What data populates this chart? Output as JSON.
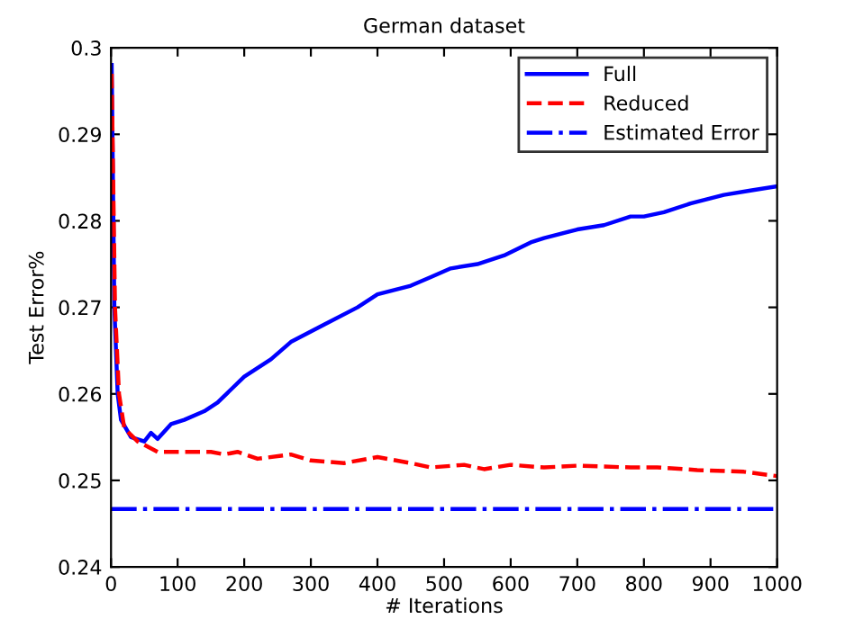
{
  "chart_data": {
    "type": "line",
    "title": "German dataset",
    "xlabel": "# Iterations",
    "ylabel": "Test Error%",
    "xlim": [
      0,
      1000
    ],
    "xticks": [
      0,
      100,
      200,
      300,
      400,
      500,
      600,
      700,
      800,
      900,
      1000
    ],
    "ylim": [
      0.24,
      0.3
    ],
    "yticks": [
      0.24,
      0.25,
      0.26,
      0.27,
      0.28,
      0.29,
      0.3
    ],
    "grid": false,
    "legend": "top right",
    "series": [
      {
        "name": "Full",
        "color": "#0000ff",
        "line_style": "solid",
        "x": [
          1,
          5,
          10,
          15,
          30,
          50,
          60,
          70,
          90,
          110,
          140,
          160,
          200,
          240,
          270,
          320,
          370,
          400,
          450,
          480,
          510,
          550,
          590,
          630,
          650,
          700,
          740,
          780,
          800,
          830,
          870,
          920,
          960,
          1000
        ],
        "values": [
          0.298,
          0.27,
          0.26,
          0.257,
          0.255,
          0.2545,
          0.2555,
          0.2548,
          0.2565,
          0.257,
          0.258,
          0.259,
          0.262,
          0.264,
          0.266,
          0.268,
          0.27,
          0.2715,
          0.2725,
          0.2735,
          0.2745,
          0.275,
          0.276,
          0.2775,
          0.278,
          0.279,
          0.2795,
          0.2805,
          0.2805,
          0.281,
          0.282,
          0.283,
          0.2835,
          0.284
        ]
      },
      {
        "name": "Reduced",
        "color": "#ff0000",
        "line_style": "dashed",
        "x": [
          1,
          6,
          12,
          20,
          40,
          70,
          120,
          150,
          170,
          190,
          220,
          270,
          300,
          350,
          400,
          450,
          480,
          530,
          560,
          600,
          650,
          700,
          780,
          820,
          880,
          950,
          1000
        ],
        "values": [
          0.297,
          0.27,
          0.26,
          0.256,
          0.2545,
          0.2533,
          0.2533,
          0.2533,
          0.253,
          0.2533,
          0.2525,
          0.253,
          0.2523,
          0.252,
          0.2527,
          0.252,
          0.2515,
          0.2518,
          0.2513,
          0.2518,
          0.2515,
          0.2517,
          0.2515,
          0.2515,
          0.2512,
          0.251,
          0.2505
        ]
      },
      {
        "name": "Estimated Error",
        "color": "#0000ff",
        "line_style": "dashdot",
        "x": [
          0,
          1000
        ],
        "values": [
          0.2467,
          0.2467
        ]
      }
    ]
  }
}
